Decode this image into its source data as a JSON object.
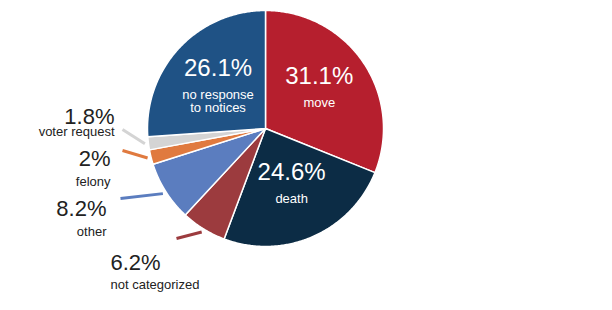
{
  "chart_data": {
    "type": "pie",
    "categories": [
      "move",
      "death",
      "not categorized",
      "other",
      "felony",
      "voter request",
      "no response to notices"
    ],
    "values": [
      31.1,
      24.6,
      6.2,
      8.2,
      2,
      1.8,
      26.1
    ],
    "value_labels": [
      "31.1%",
      "24.6%",
      "6.2%",
      "8.2%",
      "2%",
      "1.8%",
      "26.1%"
    ],
    "colors": [
      "#b61f2e",
      "#0c2c45",
      "#9c3b3e",
      "#5b7dbf",
      "#e07a3f",
      "#d4d4d4",
      "#1f5285"
    ],
    "data_labels": true
  }
}
